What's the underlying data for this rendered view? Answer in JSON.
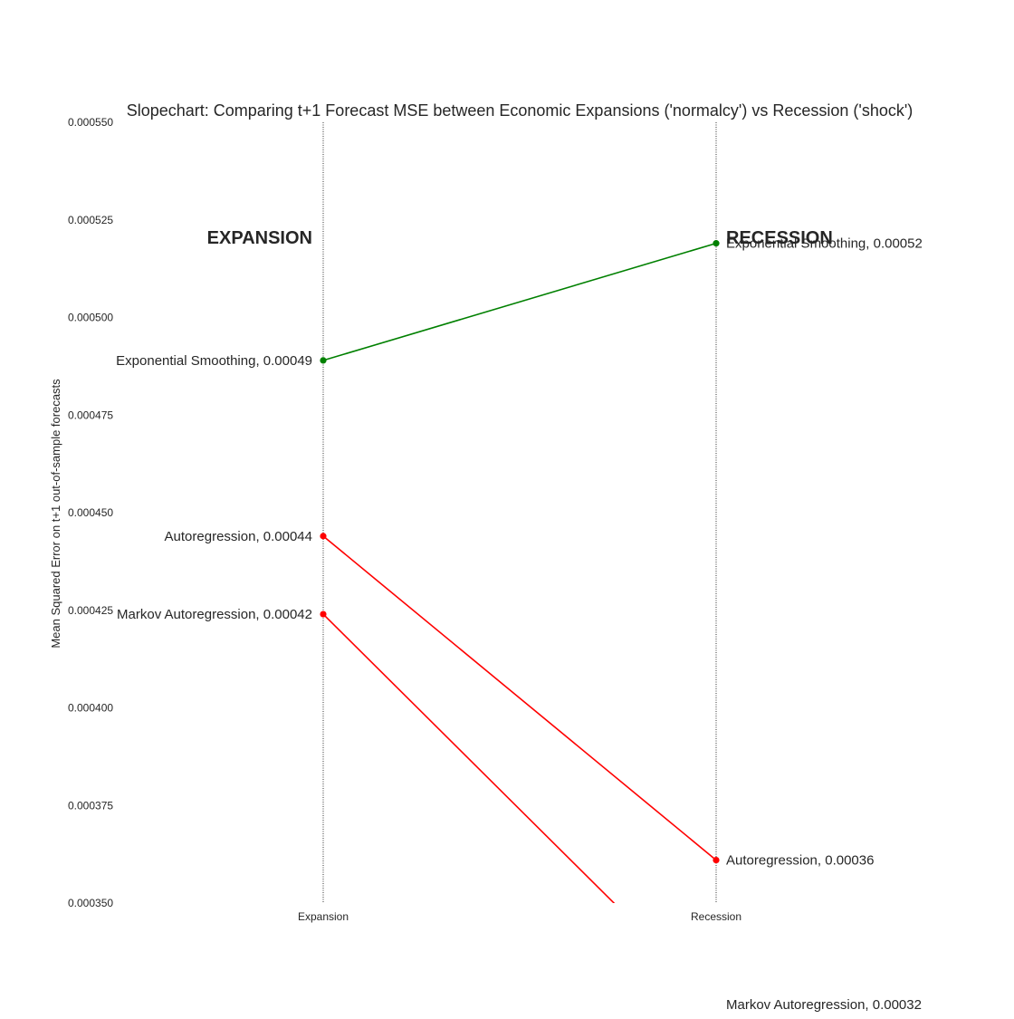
{
  "chart_data": {
    "type": "line",
    "title": "Slopechart: Comparing t+1 Forecast MSE between Economic Expansions ('normalcy') vs Recession ('shock')",
    "xlabel": "",
    "ylabel": "Mean Squared Error on t+1 out-of-sample forecasts",
    "categories": [
      "Expansion",
      "Recession"
    ],
    "ylim": [
      0.00035,
      0.00055
    ],
    "yticks": [
      "0.000350",
      "0.000375",
      "0.000400",
      "0.000425",
      "0.000450",
      "0.000475",
      "0.000500",
      "0.000525",
      "0.000550"
    ],
    "grid": false,
    "legend": "none",
    "column_headers": [
      "EXPANSION",
      "RECESSION"
    ],
    "series": [
      {
        "name": "Exponential Smoothing",
        "values": [
          0.000489,
          0.000519
        ],
        "labels": [
          "Exponential Smoothing, 0.00049",
          "Exponential Smoothing, 0.00052"
        ],
        "color": "#008000"
      },
      {
        "name": "Autoregression",
        "values": [
          0.000444,
          0.000361
        ],
        "labels": [
          "Autoregression, 0.00044",
          "Autoregression, 0.00036"
        ],
        "color": "#ff0000"
      },
      {
        "name": "Markov Autoregression",
        "values": [
          0.000424,
          0.000324
        ],
        "labels": [
          "Markov Autoregression, 0.00042",
          "Markov Autoregression, 0.00032"
        ],
        "color": "#ff0000"
      }
    ]
  }
}
